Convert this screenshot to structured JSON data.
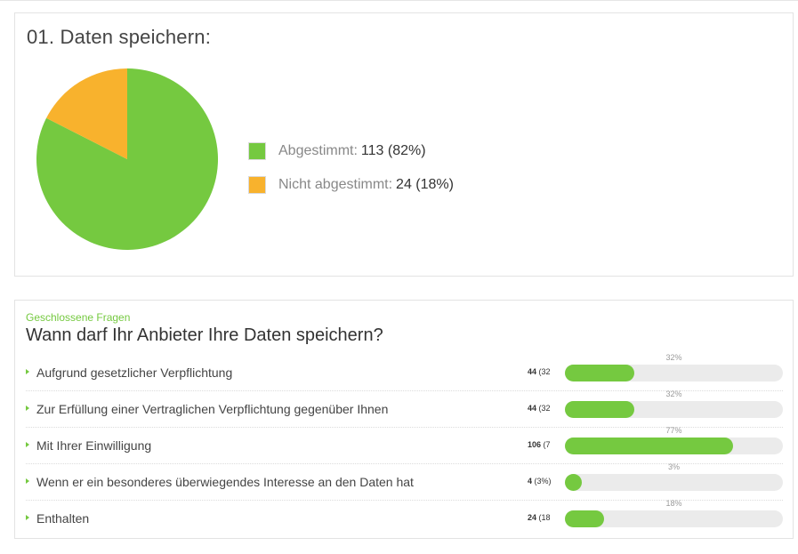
{
  "summary": {
    "title": "01. Daten speichern:",
    "legend": [
      {
        "label": "Abgestimmt:",
        "value": "113 (82%)",
        "color": "#75c940"
      },
      {
        "label": "Nicht abgestimmt:",
        "value": "24 (18%)",
        "color": "#f8b22d"
      }
    ]
  },
  "chart_data": {
    "type": "pie",
    "categories": [
      "Abgestimmt",
      "Nicht abgestimmt"
    ],
    "values": [
      113,
      24
    ],
    "colors": [
      "#75c940",
      "#f8b22d"
    ]
  },
  "question": {
    "category": "Geschlossene Fragen",
    "title": "Wann darf Ihr Anbieter Ihre Daten speichern?",
    "bar_color": "#75c940",
    "answers": [
      {
        "label": "Aufgrund gesetzlicher Verpflichtung",
        "count": "44",
        "count_pct": "(32",
        "percent": 32,
        "percent_label": "32%"
      },
      {
        "label": "Zur Erfüllung einer Vertraglichen Verpflichtung gegenüber Ihnen",
        "count": "44",
        "count_pct": "(32",
        "percent": 32,
        "percent_label": "32%"
      },
      {
        "label": "Mit Ihrer Einwilligung",
        "count": "106",
        "count_pct": "(7",
        "percent": 77,
        "percent_label": "77%"
      },
      {
        "label": "Wenn er ein besonderes überwiegendes Interesse an den Daten hat",
        "count": "4",
        "count_pct": "(3%)",
        "percent": 3,
        "percent_label": "3%"
      },
      {
        "label": "Enthalten",
        "count": "24",
        "count_pct": "(18",
        "percent": 18,
        "percent_label": "18%"
      }
    ]
  }
}
